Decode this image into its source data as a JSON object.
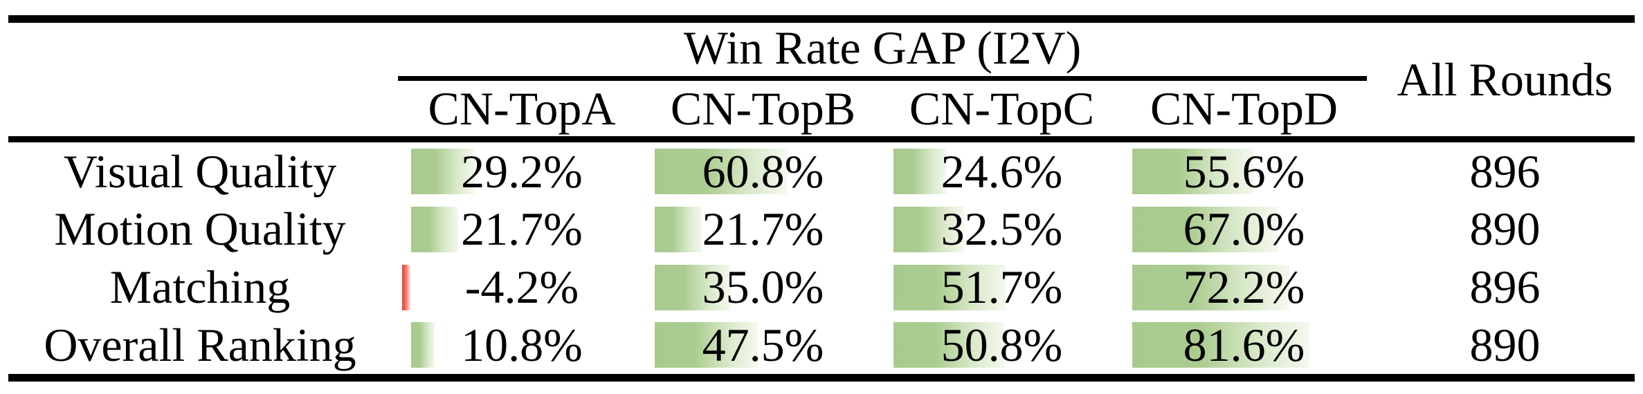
{
  "chart_data": {
    "type": "table",
    "title": "Win Rate GAP (I2V)",
    "all_rounds_label": "All Rounds",
    "columns": [
      "CN-TopA",
      "CN-TopB",
      "CN-TopC",
      "CN-TopD"
    ],
    "rows": [
      "Visual Quality",
      "Motion Quality",
      "Matching",
      "Overall Ranking"
    ],
    "win_rate_gap_percent": [
      [
        29.2,
        60.8,
        24.6,
        55.6
      ],
      [
        21.7,
        21.7,
        32.5,
        67.0
      ],
      [
        -4.2,
        35.0,
        51.7,
        72.2
      ],
      [
        10.8,
        47.5,
        50.8,
        81.6
      ]
    ],
    "all_rounds": [
      896,
      890,
      896,
      890
    ],
    "value_format": "one_decimal_percent",
    "layout_hints": {
      "databar_style": "excel-gradient",
      "positive_bar_color": "#a9ca8e",
      "negative_bar_color": "#ee3c31",
      "text_color": "#000000",
      "rule_color": "#000000"
    }
  }
}
